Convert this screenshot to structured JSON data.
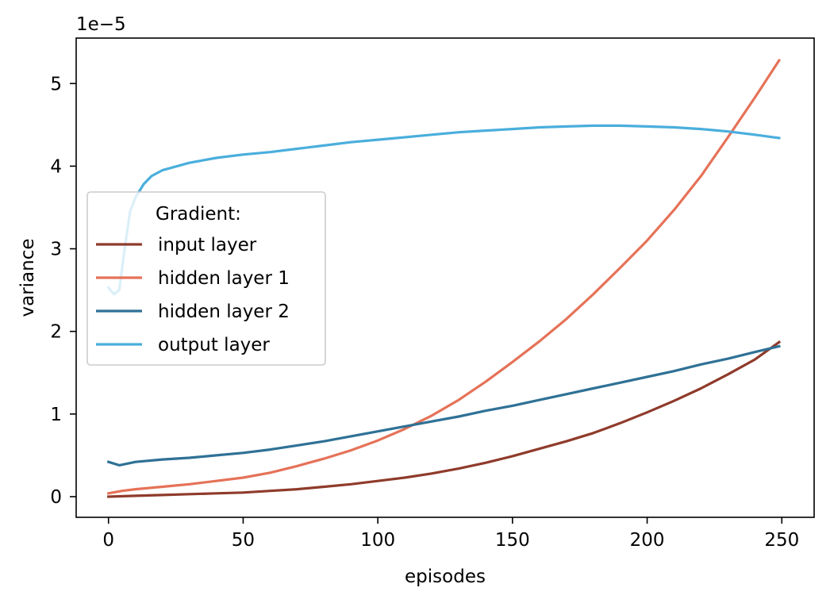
{
  "chart_data": {
    "type": "line",
    "xlabel": "episodes",
    "ylabel": "variance",
    "y_offset_label": "1e−5",
    "xlim": [
      -12,
      262
    ],
    "ylim": [
      -0.25,
      5.55
    ],
    "x_ticks": [
      0,
      50,
      100,
      150,
      200,
      250
    ],
    "x_tick_labels": [
      "0",
      "50",
      "100",
      "150",
      "200",
      "250"
    ],
    "y_ticks": [
      0,
      1,
      2,
      3,
      4,
      5
    ],
    "y_tick_labels": [
      "0",
      "1",
      "2",
      "3",
      "4",
      "5"
    ],
    "grid": false,
    "legend": {
      "title": "Gradient:",
      "placement": "center-left"
    },
    "series": [
      {
        "name": "input layer",
        "color": "#8f3b2b",
        "points": [
          [
            0,
            0.0
          ],
          [
            10,
            0.01
          ],
          [
            20,
            0.02
          ],
          [
            30,
            0.03
          ],
          [
            40,
            0.04
          ],
          [
            50,
            0.05
          ],
          [
            60,
            0.07
          ],
          [
            70,
            0.09
          ],
          [
            80,
            0.12
          ],
          [
            90,
            0.15
          ],
          [
            100,
            0.19
          ],
          [
            110,
            0.23
          ],
          [
            120,
            0.28
          ],
          [
            130,
            0.34
          ],
          [
            140,
            0.41
          ],
          [
            150,
            0.49
          ],
          [
            160,
            0.58
          ],
          [
            170,
            0.67
          ],
          [
            180,
            0.77
          ],
          [
            190,
            0.89
          ],
          [
            200,
            1.02
          ],
          [
            210,
            1.16
          ],
          [
            220,
            1.31
          ],
          [
            230,
            1.48
          ],
          [
            240,
            1.66
          ],
          [
            249,
            1.87
          ]
        ]
      },
      {
        "name": "hidden layer 1",
        "color": "#e57258",
        "points": [
          [
            0,
            0.04
          ],
          [
            5,
            0.07
          ],
          [
            10,
            0.09
          ],
          [
            20,
            0.12
          ],
          [
            30,
            0.15
          ],
          [
            40,
            0.19
          ],
          [
            50,
            0.23
          ],
          [
            60,
            0.29
          ],
          [
            70,
            0.37
          ],
          [
            80,
            0.46
          ],
          [
            90,
            0.56
          ],
          [
            100,
            0.68
          ],
          [
            110,
            0.82
          ],
          [
            120,
            0.98
          ],
          [
            130,
            1.17
          ],
          [
            140,
            1.39
          ],
          [
            150,
            1.63
          ],
          [
            160,
            1.88
          ],
          [
            170,
            2.15
          ],
          [
            180,
            2.45
          ],
          [
            190,
            2.77
          ],
          [
            200,
            3.1
          ],
          [
            210,
            3.47
          ],
          [
            220,
            3.88
          ],
          [
            230,
            4.35
          ],
          [
            240,
            4.83
          ],
          [
            249,
            5.28
          ]
        ]
      },
      {
        "name": "hidden layer 2",
        "color": "#2f7196",
        "points": [
          [
            0,
            0.42
          ],
          [
            4,
            0.38
          ],
          [
            10,
            0.42
          ],
          [
            20,
            0.45
          ],
          [
            30,
            0.47
          ],
          [
            40,
            0.5
          ],
          [
            50,
            0.53
          ],
          [
            60,
            0.57
          ],
          [
            70,
            0.62
          ],
          [
            80,
            0.67
          ],
          [
            90,
            0.73
          ],
          [
            100,
            0.79
          ],
          [
            110,
            0.85
          ],
          [
            120,
            0.91
          ],
          [
            130,
            0.97
          ],
          [
            140,
            1.04
          ],
          [
            150,
            1.1
          ],
          [
            160,
            1.17
          ],
          [
            170,
            1.24
          ],
          [
            180,
            1.31
          ],
          [
            190,
            1.38
          ],
          [
            200,
            1.45
          ],
          [
            210,
            1.52
          ],
          [
            220,
            1.6
          ],
          [
            230,
            1.67
          ],
          [
            240,
            1.75
          ],
          [
            249,
            1.82
          ]
        ]
      },
      {
        "name": "output layer",
        "color": "#4aaedc",
        "points": [
          [
            0,
            2.53
          ],
          [
            2,
            2.45
          ],
          [
            4,
            2.5
          ],
          [
            6,
            3.0
          ],
          [
            8,
            3.45
          ],
          [
            10,
            3.62
          ],
          [
            13,
            3.78
          ],
          [
            16,
            3.88
          ],
          [
            20,
            3.95
          ],
          [
            30,
            4.04
          ],
          [
            40,
            4.1
          ],
          [
            50,
            4.14
          ],
          [
            60,
            4.17
          ],
          [
            70,
            4.21
          ],
          [
            80,
            4.25
          ],
          [
            90,
            4.29
          ],
          [
            100,
            4.32
          ],
          [
            110,
            4.35
          ],
          [
            120,
            4.38
          ],
          [
            130,
            4.41
          ],
          [
            140,
            4.43
          ],
          [
            150,
            4.45
          ],
          [
            160,
            4.47
          ],
          [
            170,
            4.48
          ],
          [
            180,
            4.49
          ],
          [
            190,
            4.49
          ],
          [
            200,
            4.48
          ],
          [
            210,
            4.47
          ],
          [
            220,
            4.45
          ],
          [
            230,
            4.42
          ],
          [
            240,
            4.38
          ],
          [
            249,
            4.34
          ]
        ]
      }
    ]
  }
}
